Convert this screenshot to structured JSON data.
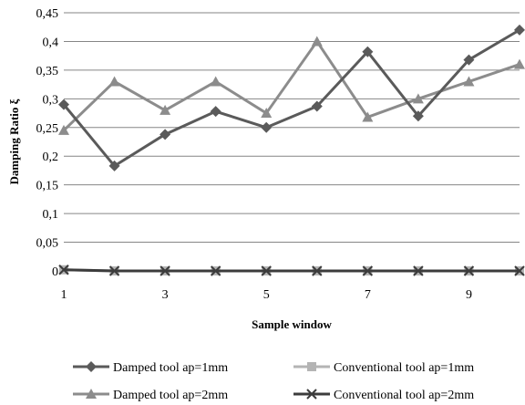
{
  "chart_data": {
    "type": "line",
    "title": "",
    "xlabel": "Sample window",
    "ylabel": "Damping Ratio ξ",
    "x": [
      1,
      2,
      3,
      4,
      5,
      6,
      7,
      8,
      9,
      10
    ],
    "x_tick_labels": [
      "1",
      "3",
      "5",
      "7",
      "9"
    ],
    "y_tick_labels": [
      "0",
      "0,05",
      "0,1",
      "0,15",
      "0,2",
      "0,25",
      "0,3",
      "0,35",
      "0,4",
      "0,45"
    ],
    "xlim": [
      1,
      10
    ],
    "ylim": [
      0,
      0.45
    ],
    "grid": "horizontal",
    "legend_position": "bottom",
    "series": [
      {
        "name": "Damped tool ap=1mm",
        "color": "#5a5a5a",
        "marker": "diamond",
        "values": [
          0.29,
          0.183,
          0.238,
          0.278,
          0.25,
          0.287,
          0.382,
          0.27,
          0.368,
          0.42
        ]
      },
      {
        "name": "Conventional tool ap=1mm",
        "color": "#b4b4b4",
        "marker": "square",
        "values": [
          0.002,
          0.0,
          0.0,
          0.0,
          0.0,
          0.0,
          0.0,
          0.0,
          0.0,
          0.0
        ]
      },
      {
        "name": "Damped tool ap=2mm",
        "color": "#8c8c8c",
        "marker": "triangle",
        "values": [
          0.245,
          0.33,
          0.28,
          0.33,
          0.275,
          0.4,
          0.268,
          0.3,
          0.33,
          0.36
        ]
      },
      {
        "name": "Conventional tool ap=2mm",
        "color": "#3c3c3c",
        "marker": "x",
        "values": [
          0.002,
          0.0,
          0.0,
          0.0,
          0.0,
          0.0,
          0.0,
          0.0,
          0.0,
          0.0
        ]
      }
    ]
  }
}
